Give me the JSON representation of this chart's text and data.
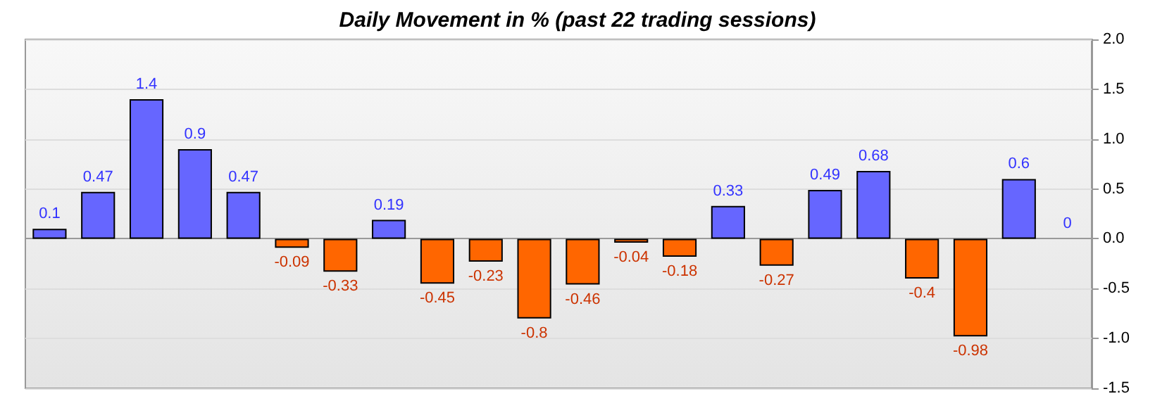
{
  "chart_data": {
    "type": "bar",
    "title": "Daily Movement in % (past 22 trading sessions)",
    "categories": [
      null,
      null,
      null,
      null,
      null,
      null,
      null,
      null,
      null,
      null,
      null,
      null,
      null,
      null,
      null,
      null,
      null,
      null,
      null,
      null,
      null,
      null
    ],
    "values": [
      0.1,
      0.47,
      1.4,
      0.9,
      0.47,
      -0.09,
      -0.33,
      0.19,
      -0.45,
      -0.23,
      -0.8,
      -0.46,
      -0.04,
      -0.18,
      0.33,
      -0.27,
      0.49,
      0.68,
      -0.4,
      -0.98,
      0.6,
      0
    ],
    "colors": [
      "#6666ff",
      "#6666ff",
      "#6666ff",
      "#6666ff",
      "#6666ff",
      "#ff6600",
      "#ff6600",
      "#6666ff",
      "#ff6600",
      "#ff6600",
      "#ff6600",
      "#ff6600",
      "#ff6600",
      "#ff6600",
      "#6666ff",
      "#ff6600",
      "#6666ff",
      "#6666ff",
      "#ff6600",
      "#ff6600",
      "#6666ff",
      "#6666ff"
    ],
    "ylim": [
      -1.5,
      2.0
    ],
    "yticks": [
      {
        "value": -1.5,
        "label": "-1.5"
      },
      {
        "value": -1,
        "label": "-1.0"
      },
      {
        "value": -0.5,
        "label": "-0.5"
      },
      {
        "value": 0,
        "label": "0.0"
      },
      {
        "value": 0.5,
        "label": "0.5"
      },
      {
        "value": 1,
        "label": "1.0"
      },
      {
        "value": 1.5,
        "label": "1.5"
      },
      {
        "value": 2,
        "label": "2.0"
      }
    ],
    "grid": "y",
    "data_labels": true
  }
}
